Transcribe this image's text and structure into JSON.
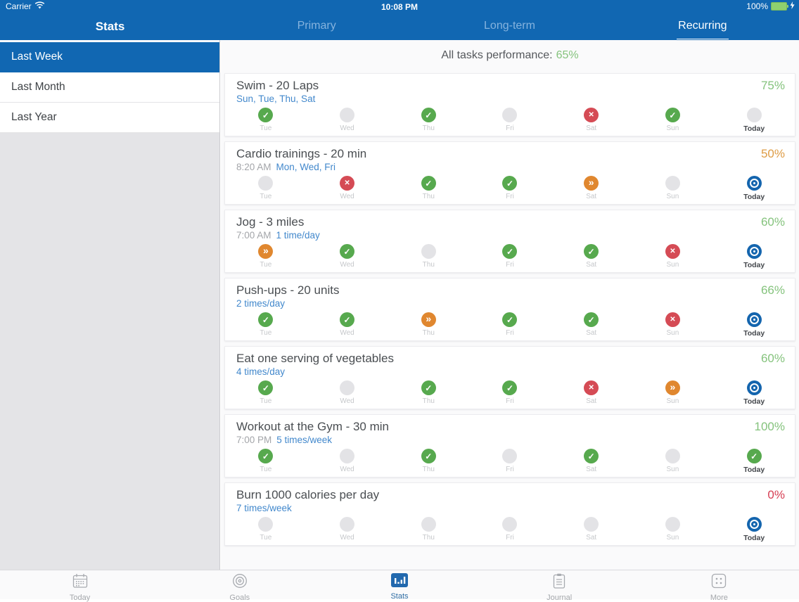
{
  "status_bar": {
    "carrier": "Carrier",
    "time": "10:08 PM",
    "battery": "100%"
  },
  "header": {
    "title": "Stats",
    "tabs": [
      {
        "label": "Primary",
        "active": false
      },
      {
        "label": "Long-term",
        "active": false
      },
      {
        "label": "Recurring",
        "active": true
      }
    ]
  },
  "sidebar": {
    "items": [
      {
        "label": "Last Week",
        "active": true
      },
      {
        "label": "Last Month",
        "active": false
      },
      {
        "label": "Last Year",
        "active": false
      }
    ]
  },
  "summary": {
    "label": "All tasks performance:",
    "value": "65%",
    "value_color": "#85C37D"
  },
  "day_labels": [
    "Tue",
    "Wed",
    "Thu",
    "Fri",
    "Sat",
    "Sun",
    "Today"
  ],
  "tasks": [
    {
      "title": "Swim - 20 Laps",
      "time": "",
      "schedule": "Sun, Tue, Thu, Sat",
      "percent": "75%",
      "percent_color": "#85C37D",
      "days": [
        "check",
        "empty",
        "check",
        "empty",
        "cross",
        "check",
        "empty"
      ]
    },
    {
      "title": "Cardio trainings - 20 min",
      "time": "8:20 AM",
      "schedule": "Mon, Wed, Fri",
      "percent": "50%",
      "percent_color": "#DE9C45",
      "days": [
        "empty",
        "cross",
        "check",
        "check",
        "skip",
        "empty",
        "target"
      ]
    },
    {
      "title": "Jog - 3 miles",
      "time": "7:00 AM",
      "schedule": "1 time/day",
      "percent": "60%",
      "percent_color": "#85C37D",
      "days": [
        "skip",
        "check",
        "empty",
        "check",
        "check",
        "cross",
        "target"
      ]
    },
    {
      "title": "Push-ups - 20 units",
      "time": "",
      "schedule": "2 times/day",
      "percent": "66%",
      "percent_color": "#85C37D",
      "days": [
        "check",
        "check",
        "skip",
        "check",
        "check",
        "cross",
        "target"
      ]
    },
    {
      "title": "Eat one serving of vegetables",
      "time": "",
      "schedule": "4 times/day",
      "percent": "60%",
      "percent_color": "#85C37D",
      "days": [
        "check",
        "empty",
        "check",
        "check",
        "cross",
        "skip",
        "target"
      ]
    },
    {
      "title": "Workout at the Gym - 30 min",
      "time": "7:00 PM",
      "schedule": "5 times/week",
      "percent": "100%",
      "percent_color": "#85C37D",
      "days": [
        "check",
        "empty",
        "check",
        "empty",
        "check",
        "empty",
        "check"
      ]
    },
    {
      "title": "Burn 1000 calories per day",
      "time": "",
      "schedule": "7 times/week",
      "percent": "0%",
      "percent_color": "#D63E53",
      "days": [
        "empty",
        "empty",
        "empty",
        "empty",
        "empty",
        "empty",
        "target"
      ]
    }
  ],
  "day_states_legend": {
    "check": "completed",
    "cross": "missed",
    "skip": "postponed",
    "empty": "not-scheduled",
    "target": "today-pending"
  },
  "tab_bar": {
    "items": [
      {
        "label": "Today",
        "icon": "calendar-icon",
        "active": false
      },
      {
        "label": "Goals",
        "icon": "bullseye-icon",
        "active": false
      },
      {
        "label": "Stats",
        "icon": "bar-chart-icon",
        "active": true
      },
      {
        "label": "Journal",
        "icon": "journal-icon",
        "active": false
      },
      {
        "label": "More",
        "icon": "more-grid-icon",
        "active": false
      }
    ]
  },
  "colors": {
    "header_blue": "#1167B2",
    "inactive_tab_blue": "#85B3DE",
    "link_blue": "#4288CC",
    "done_green": "#57A94E",
    "missed_red": "#D54B55",
    "skip_orange": "#E0872F",
    "today_target_blue": "#1465AE",
    "empty_gray": "#E3E3E6",
    "battery_green": "#8FD06F"
  }
}
